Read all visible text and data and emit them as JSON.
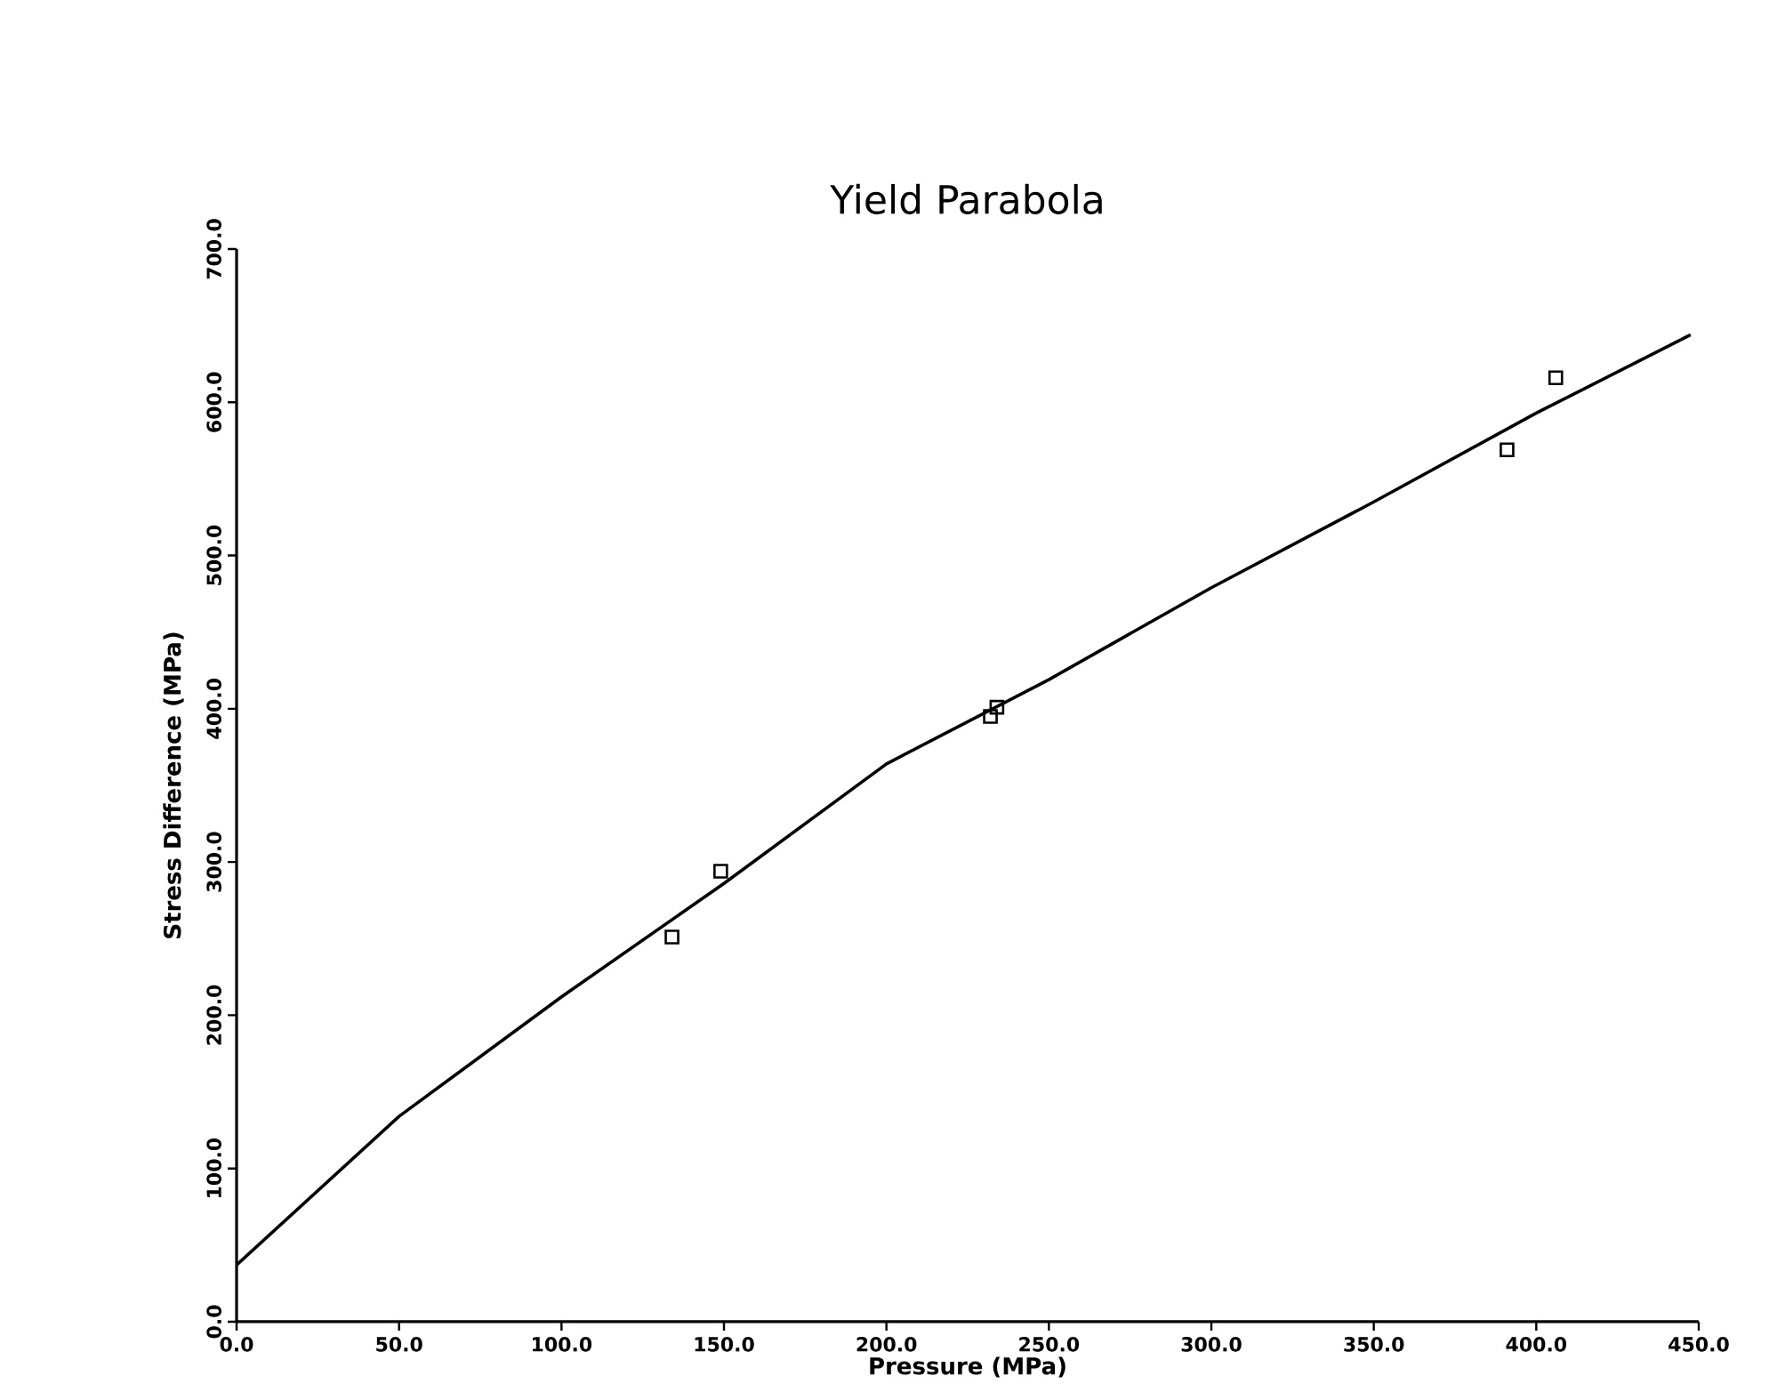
{
  "chart_data": {
    "type": "scatter",
    "title": "Yield Parabola",
    "xlabel": "Pressure (MPa)",
    "ylabel": "Stress Difference (MPa)",
    "xlim": [
      0,
      450
    ],
    "ylim": [
      0,
      700
    ],
    "xticks": [
      {
        "value": 0,
        "label": "0.0"
      },
      {
        "value": 50,
        "label": "50.0"
      },
      {
        "value": 100,
        "label": "100.0"
      },
      {
        "value": 150,
        "label": "150.0"
      },
      {
        "value": 200,
        "label": "200.0"
      },
      {
        "value": 250,
        "label": "250.0"
      },
      {
        "value": 300,
        "label": "300.0"
      },
      {
        "value": 350,
        "label": "350.0"
      },
      {
        "value": 400,
        "label": "400.0"
      },
      {
        "value": 450,
        "label": "450.0"
      }
    ],
    "yticks": [
      {
        "value": 0,
        "label": "0.0"
      },
      {
        "value": 100,
        "label": "100.0"
      },
      {
        "value": 200,
        "label": "200.0"
      },
      {
        "value": 300,
        "label": "300.0"
      },
      {
        "value": 400,
        "label": "400.0"
      },
      {
        "value": 500,
        "label": "500.0"
      },
      {
        "value": 600,
        "label": "600.0"
      },
      {
        "value": 700,
        "label": "700.0"
      }
    ],
    "grid": false,
    "series": [
      {
        "marker": "square",
        "color": "#000000",
        "x": [
          134,
          149,
          232,
          234,
          391,
          406
        ],
        "values": [
          251,
          294,
          395,
          401,
          569,
          616
        ]
      },
      {
        "type": "line",
        "marker": "none",
        "line_style": "solid",
        "color": "#000000",
        "x": [
          0,
          50,
          100,
          150,
          200,
          250,
          300,
          350,
          400,
          447.5
        ],
        "values": [
          37,
          134,
          212,
          286,
          364,
          419,
          479,
          535,
          593,
          644
        ]
      }
    ]
  }
}
